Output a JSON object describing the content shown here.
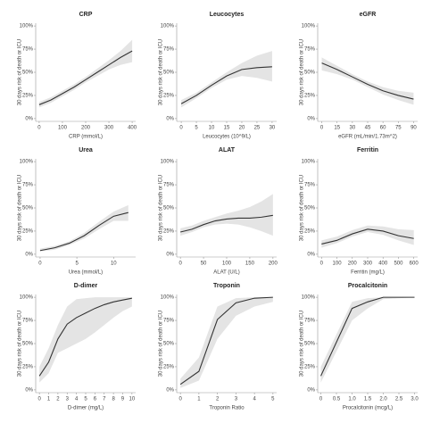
{
  "chart_data": [
    {
      "type": "line",
      "title": "CRP",
      "xlabel": "CRP (mmol/L)",
      "ylabel": "30 days risk of death or ICU",
      "x": [
        0,
        50,
        100,
        150,
        200,
        250,
        300,
        350,
        400
      ],
      "values": [
        15,
        20,
        27,
        34,
        42,
        50,
        58,
        66,
        73
      ],
      "lower": [
        12,
        17,
        24,
        31,
        39,
        46,
        53,
        58,
        61
      ],
      "upper": [
        18,
        23,
        30,
        37,
        45,
        54,
        63,
        73,
        85
      ],
      "xlim": [
        -15,
        415
      ],
      "xticks": [
        0,
        100,
        200,
        300,
        400
      ],
      "ylim": [
        -3,
        103
      ],
      "yticks": [
        {
          "value": 0,
          "label": "0%"
        },
        {
          "value": 25,
          "label": "25%"
        },
        {
          "value": 50,
          "label": "50%"
        },
        {
          "value": 75,
          "label": "75%"
        },
        {
          "value": 100,
          "label": "100%"
        }
      ],
      "color": "#333333",
      "band_color": "#e4e4e4"
    },
    {
      "type": "line",
      "title": "Leucocytes",
      "xlabel": "Leucocytes (10^9/L)",
      "ylabel": "30 days risk of death or ICU",
      "x": [
        0,
        5,
        10,
        15,
        20,
        25,
        30
      ],
      "values": [
        16,
        25,
        36,
        46,
        53,
        55,
        56
      ],
      "lower": [
        12,
        22,
        33,
        42,
        46,
        44,
        40
      ],
      "upper": [
        20,
        28,
        39,
        50,
        60,
        68,
        73
      ],
      "xlim": [
        -1.5,
        31.5
      ],
      "xticks": [
        0,
        5,
        10,
        15,
        20,
        25,
        30
      ],
      "ylim": [
        -3,
        103
      ],
      "yticks": [
        {
          "value": 0,
          "label": "0%"
        },
        {
          "value": 25,
          "label": "25%"
        },
        {
          "value": 50,
          "label": "50%"
        },
        {
          "value": 75,
          "label": "75%"
        },
        {
          "value": 100,
          "label": "100%"
        }
      ],
      "color": "#333333",
      "band_color": "#e4e4e4"
    },
    {
      "type": "line",
      "title": "eGFR",
      "xlabel": "eGFR (mL/min/1.73m^2)",
      "ylabel": "30 days risk of death or ICU",
      "x": [
        0,
        15,
        30,
        45,
        60,
        75,
        90
      ],
      "values": [
        60,
        53,
        45,
        37,
        30,
        25,
        21
      ],
      "lower": [
        52,
        48,
        42,
        34,
        26,
        20,
        15
      ],
      "upper": [
        66,
        57,
        48,
        40,
        34,
        30,
        28
      ],
      "xlim": [
        -4,
        94
      ],
      "xticks": [
        0,
        15,
        30,
        45,
        60,
        75,
        90
      ],
      "ylim": [
        -3,
        103
      ],
      "yticks": [
        {
          "value": 0,
          "label": "0%"
        },
        {
          "value": 25,
          "label": "25%"
        },
        {
          "value": 50,
          "label": "50%"
        },
        {
          "value": 75,
          "label": "75%"
        },
        {
          "value": 100,
          "label": "100%"
        }
      ],
      "color": "#333333",
      "band_color": "#e4e4e4"
    },
    {
      "type": "line",
      "title": "Urea",
      "xlabel": "Urea (mmol/L)",
      "ylabel": "30 days risk of death or ICU",
      "x": [
        0,
        2,
        4,
        6,
        8,
        10,
        12
      ],
      "values": [
        4,
        7,
        12,
        20,
        31,
        41,
        45
      ],
      "lower": [
        3,
        5,
        10,
        17,
        27,
        36,
        36
      ],
      "upper": [
        6,
        9,
        14,
        23,
        35,
        46,
        53
      ],
      "xlim": [
        -0.6,
        13
      ],
      "xticks": [
        0,
        5,
        10
      ],
      "ylim": [
        -3,
        103
      ],
      "yticks": [
        {
          "value": 0,
          "label": "0%"
        },
        {
          "value": 25,
          "label": "25%"
        },
        {
          "value": 50,
          "label": "50%"
        },
        {
          "value": 75,
          "label": "75%"
        },
        {
          "value": 100,
          "label": "100%"
        }
      ],
      "color": "#333333",
      "band_color": "#e4e4e4"
    },
    {
      "type": "line",
      "title": "ALAT",
      "xlabel": "ALAT (U/L)",
      "ylabel": "30 days risk of death or ICU",
      "x": [
        0,
        25,
        50,
        75,
        100,
        125,
        150,
        175,
        200
      ],
      "values": [
        24,
        27,
        32,
        36,
        38,
        39,
        39,
        40,
        42
      ],
      "lower": [
        20,
        24,
        29,
        32,
        33,
        32,
        29,
        25,
        20
      ],
      "upper": [
        28,
        31,
        36,
        40,
        44,
        47,
        51,
        57,
        65
      ],
      "xlim": [
        -8,
        208
      ],
      "xticks": [
        0,
        50,
        100,
        150,
        200
      ],
      "ylim": [
        -3,
        103
      ],
      "yticks": [
        {
          "value": 0,
          "label": "0%"
        },
        {
          "value": 25,
          "label": "25%"
        },
        {
          "value": 50,
          "label": "50%"
        },
        {
          "value": 75,
          "label": "75%"
        },
        {
          "value": 100,
          "label": "100%"
        }
      ],
      "color": "#333333",
      "band_color": "#e4e4e4"
    },
    {
      "type": "line",
      "title": "Ferritin",
      "xlabel": "Ferritin (mg/L)",
      "ylabel": "30 days risk of death or ICU",
      "x": [
        0,
        100,
        200,
        300,
        400,
        500,
        600
      ],
      "values": [
        11,
        15,
        22,
        27,
        25,
        20,
        17
      ],
      "lower": [
        7,
        12,
        19,
        24,
        21,
        15,
        10
      ],
      "upper": [
        15,
        19,
        26,
        31,
        30,
        27,
        26
      ],
      "xlim": [
        -25,
        625
      ],
      "xticks": [
        0,
        100,
        200,
        300,
        400,
        500,
        600
      ],
      "ylim": [
        -3,
        103
      ],
      "yticks": [
        {
          "value": 0,
          "label": "0%"
        },
        {
          "value": 25,
          "label": "25%"
        },
        {
          "value": 50,
          "label": "50%"
        },
        {
          "value": 75,
          "label": "75%"
        },
        {
          "value": 100,
          "label": "100%"
        }
      ],
      "color": "#333333",
      "band_color": "#e4e4e4"
    },
    {
      "type": "line",
      "title": "D-dimer",
      "xlabel": "D-dimer (mg/L)",
      "ylabel": "30 days risk of death or ICU",
      "x": [
        0,
        1,
        2,
        3,
        4,
        5,
        6,
        7,
        8,
        9,
        10
      ],
      "values": [
        15,
        30,
        55,
        71,
        78,
        83,
        88,
        92,
        95,
        97,
        99
      ],
      "lower": [
        8,
        18,
        40,
        45,
        50,
        55,
        62,
        70,
        78,
        85,
        90
      ],
      "upper": [
        25,
        45,
        70,
        90,
        98,
        99,
        100,
        100,
        100,
        100,
        100
      ],
      "xlim": [
        -0.4,
        10.4
      ],
      "xticks": [
        0,
        1,
        2,
        3,
        4,
        5,
        6,
        7,
        8,
        9,
        10
      ],
      "ylim": [
        -3,
        103
      ],
      "yticks": [
        {
          "value": 0,
          "label": "0%"
        },
        {
          "value": 25,
          "label": "25%"
        },
        {
          "value": 50,
          "label": "50%"
        },
        {
          "value": 75,
          "label": "75%"
        },
        {
          "value": 100,
          "label": "100%"
        }
      ],
      "color": "#333333",
      "band_color": "#e4e4e4"
    },
    {
      "type": "line",
      "title": "Troponin",
      "xlabel": "Troponin Ratio",
      "ylabel": "30 days risk of death or ICU",
      "x": [
        0,
        1,
        2,
        3,
        4,
        5
      ],
      "values": [
        6,
        20,
        76,
        94,
        99,
        100
      ],
      "lower": [
        2,
        10,
        55,
        80,
        90,
        95
      ],
      "upper": [
        12,
        35,
        90,
        99,
        100,
        100
      ],
      "xlim": [
        -0.2,
        5.2
      ],
      "xticks": [
        0,
        1,
        2,
        3,
        4,
        5
      ],
      "ylim": [
        -3,
        103
      ],
      "yticks": [
        {
          "value": 0,
          "label": "0%"
        },
        {
          "value": 25,
          "label": "25%"
        },
        {
          "value": 50,
          "label": "50%"
        },
        {
          "value": 75,
          "label": "75%"
        },
        {
          "value": 100,
          "label": "100%"
        }
      ],
      "color": "#333333",
      "band_color": "#e4e4e4"
    },
    {
      "type": "line",
      "title": "Procalcitonin",
      "xlabel": "Procalcitonin (mcg/L)",
      "ylabel": "30 days risk of death or ICU",
      "x": [
        0,
        1,
        1.5,
        2,
        3
      ],
      "values": [
        15,
        88,
        95,
        100,
        100
      ],
      "lower": [
        8,
        75,
        88,
        98,
        100
      ],
      "upper": [
        25,
        95,
        99,
        100,
        100
      ],
      "xlim": [
        -0.1,
        3.1
      ],
      "xticks": [
        0,
        0.5,
        {
          "value": 1,
          "label": "1.0"
        },
        1.5,
        {
          "value": 2,
          "label": "2.0"
        },
        2.5,
        {
          "value": 3,
          "label": "3.0"
        }
      ],
      "ylim": [
        -3,
        103
      ],
      "yticks": [
        {
          "value": 0,
          "label": "0%"
        },
        {
          "value": 25,
          "label": "25%"
        },
        {
          "value": 50,
          "label": "50%"
        },
        {
          "value": 75,
          "label": "75%"
        },
        {
          "value": 100,
          "label": "100%"
        }
      ],
      "color": "#333333",
      "band_color": "#e4e4e4"
    }
  ]
}
